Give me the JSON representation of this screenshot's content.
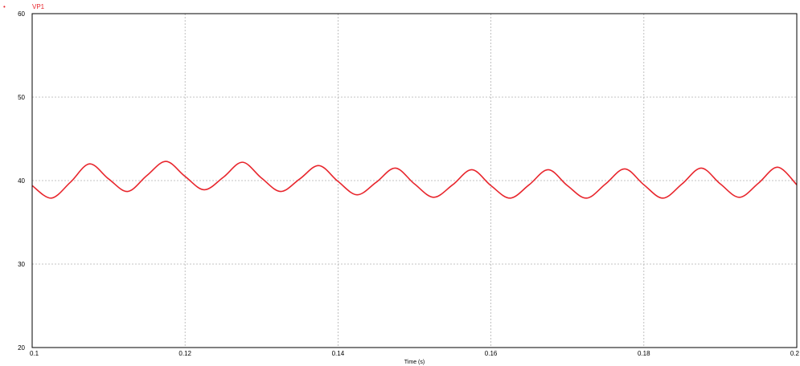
{
  "chart_data": {
    "type": "line",
    "xlabel": "Time (s)",
    "ylabel": "",
    "xlim": [
      0.1,
      0.2
    ],
    "ylim": [
      20,
      60
    ],
    "x_ticks": [
      0.1,
      0.12,
      0.14,
      0.16,
      0.18,
      0.2
    ],
    "x_tick_labels": [
      "0.1",
      "0.12",
      "0.14",
      "0.16",
      "0.18",
      "0.2"
    ],
    "y_ticks": [
      20,
      30,
      40,
      50,
      60
    ],
    "y_tick_labels": [
      "20",
      "30",
      "40",
      "50",
      "60"
    ],
    "grid": true,
    "legend_placement": "top-left",
    "series": [
      {
        "name": "VP1",
        "color": "#e8262d",
        "x": [
          0.1,
          0.1025,
          0.105,
          0.1075,
          0.11,
          0.1125,
          0.115,
          0.1175,
          0.12,
          0.1225,
          0.125,
          0.1275,
          0.13,
          0.1325,
          0.135,
          0.1375,
          0.14,
          0.1425,
          0.145,
          0.1475,
          0.15,
          0.1525,
          0.155,
          0.1575,
          0.16,
          0.1625,
          0.165,
          0.1675,
          0.17,
          0.1725,
          0.175,
          0.1775,
          0.18,
          0.1825,
          0.185,
          0.1875,
          0.19,
          0.1925,
          0.195,
          0.1975,
          0.2
        ],
        "y": [
          39.4,
          37.9,
          39.8,
          42.0,
          40.2,
          38.7,
          40.6,
          42.3,
          40.5,
          38.9,
          40.4,
          42.2,
          40.3,
          38.7,
          40.2,
          41.8,
          39.9,
          38.3,
          39.8,
          41.5,
          39.6,
          38.0,
          39.5,
          41.3,
          39.4,
          37.9,
          39.5,
          41.3,
          39.4,
          37.9,
          39.6,
          41.4,
          39.5,
          37.9,
          39.6,
          41.5,
          39.6,
          38.0,
          39.7,
          41.6,
          39.5
        ]
      }
    ]
  }
}
